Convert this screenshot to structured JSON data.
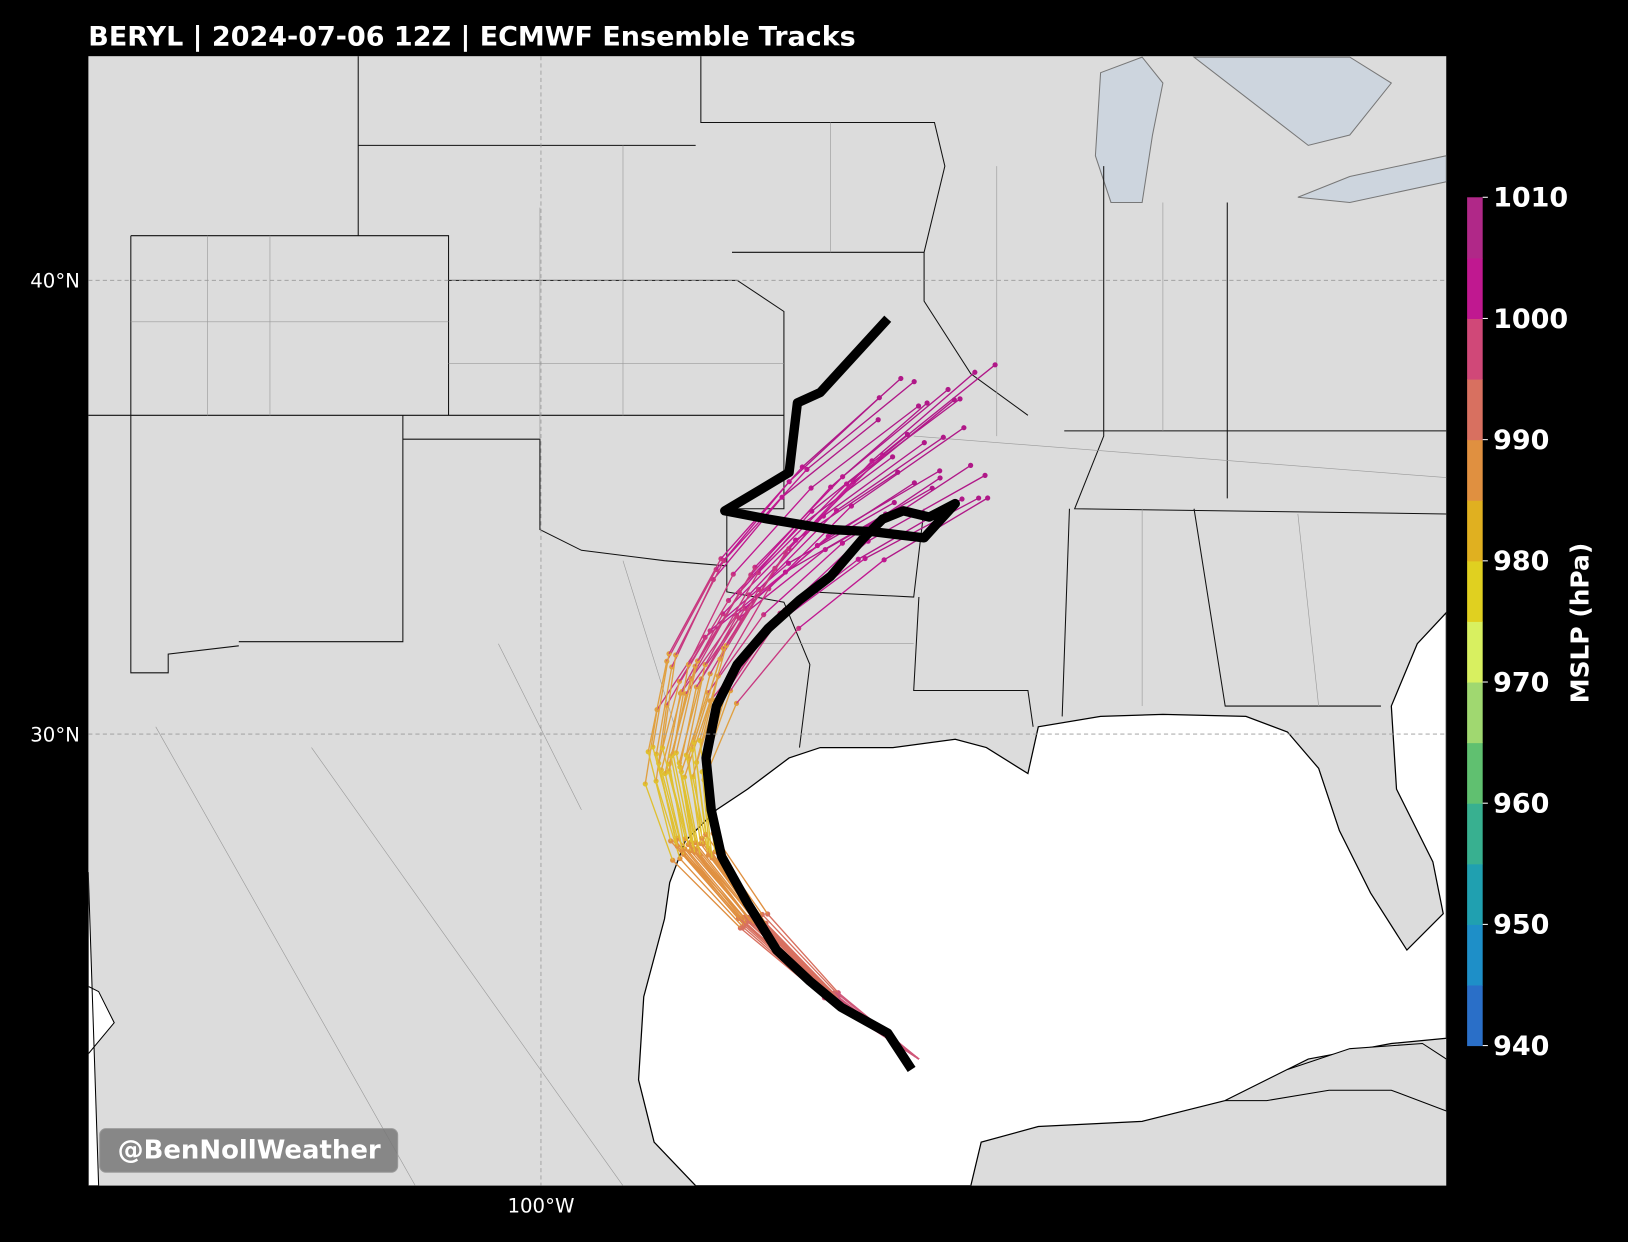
{
  "title": "BERYL | 2024-07-06 12Z | ECMWF Ensemble Tracks",
  "map": {
    "lat_ticks": [
      {
        "value": 40,
        "label": "40°N"
      },
      {
        "value": 30,
        "label": "30°N"
      }
    ],
    "lon_ticks": [
      {
        "value": -100,
        "label": "100°W"
      }
    ]
  },
  "colorbar": {
    "label": "MSLP (hPa)",
    "lim": [
      940,
      1010
    ],
    "ticks": [
      940,
      950,
      960,
      970,
      980,
      990,
      1000,
      1010
    ],
    "colors": [
      "#2a6fc8",
      "#1e8fc8",
      "#20a0b0",
      "#38b090",
      "#60c070",
      "#a0d870",
      "#d8f060",
      "#e0d020",
      "#e0b020",
      "#e09040",
      "#d87060",
      "#d04878",
      "#c01890",
      "#b02888"
    ]
  },
  "watermark": "@BenNollWeather"
}
